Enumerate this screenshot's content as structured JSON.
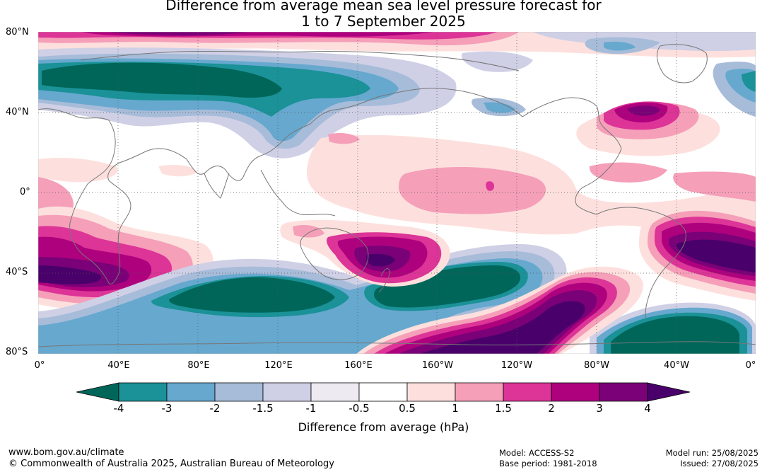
{
  "title_line1": "Difference from average mean sea level pressure forecast for",
  "title_line2": "1 to 7 September 2025",
  "y_ticks": [
    "80°N",
    "40°N",
    "0°",
    "40°S",
    "80°S"
  ],
  "x_ticks": [
    "0°",
    "40°E",
    "80°E",
    "120°E",
    "160°E",
    "160°W",
    "120°W",
    "80°W",
    "40°W",
    "0°"
  ],
  "colorbar": {
    "ticks": [
      "-4",
      "-3",
      "-2",
      "-1.5",
      "-1",
      "-0.5",
      "0.5",
      "1",
      "1.5",
      "2",
      "3",
      "4"
    ],
    "label": "Difference from average (hPa)",
    "colors": [
      "#00665a",
      "#1a9297",
      "#67a8cf",
      "#a7bcd9",
      "#cfd0e6",
      "#eeeaf2",
      "#ffffff",
      "#fde0dd",
      "#f59fb9",
      "#dd3497",
      "#ae017e",
      "#7a0177",
      "#49006a"
    ]
  },
  "footer": {
    "left_line1": "www.bom.gov.au/climate",
    "left_line2": "© Commonwealth of Australia 2025, Australian Bureau of Meteorology",
    "model": "Model: ACCESS-S2",
    "base_period": "Base period: 1981-2018",
    "model_run": "Model run: 25/08/2025",
    "issued": "Issued: 27/08/2025"
  }
}
